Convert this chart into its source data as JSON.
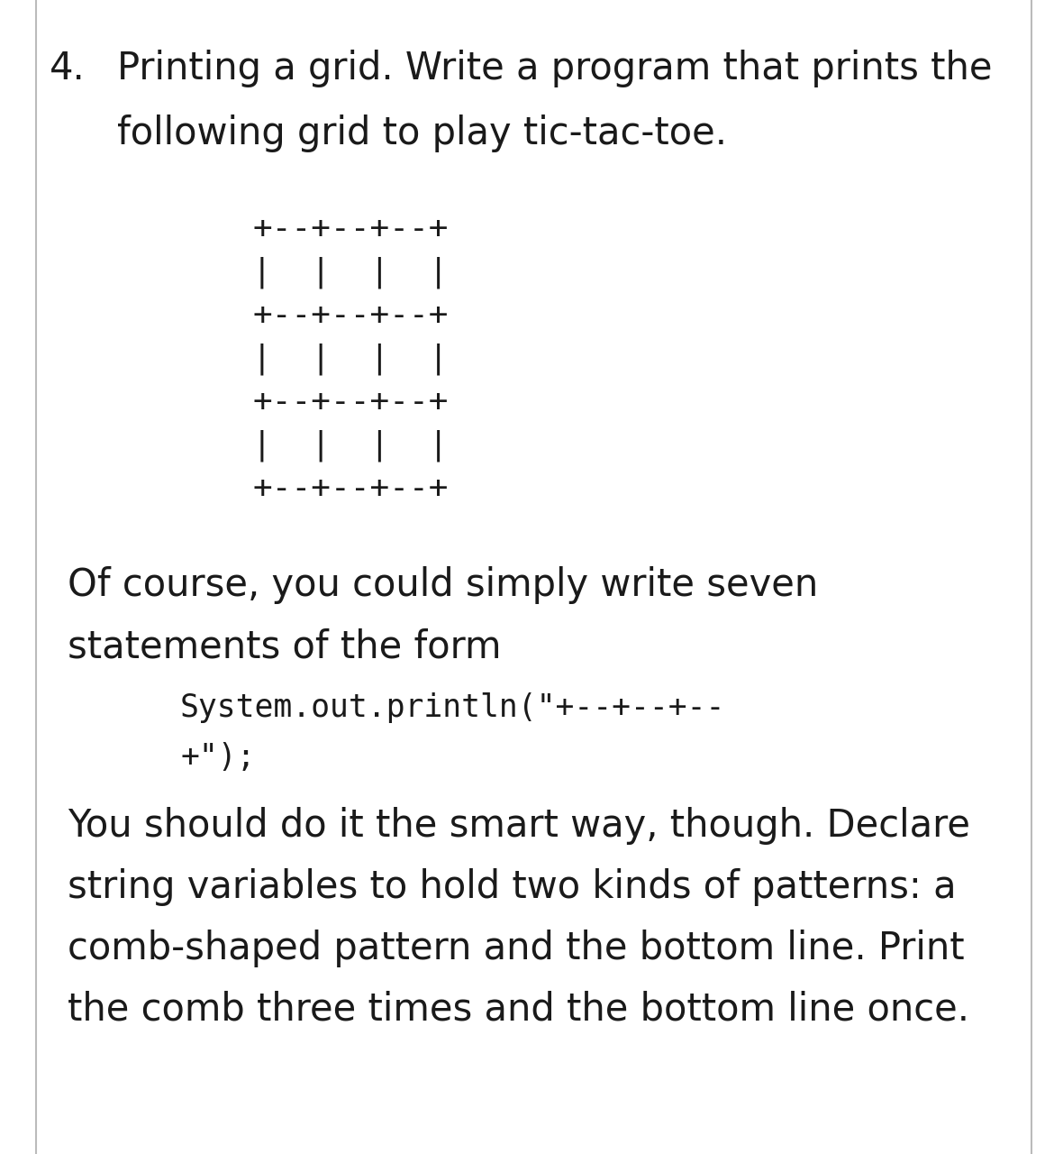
{
  "background_color": "#ffffff",
  "border_color": "#bbbbbb",
  "text_color": "#1a1a1a",
  "number_text": "4.",
  "heading_line1": "Printing a grid. Write a program that prints the",
  "heading_line2": "following grid to play tic-tac-toe.",
  "grid_lines": [
    "+--+--+--+",
    "|  |  |  |",
    "+--+--+--+",
    "|  |  |  |",
    "+--+--+--+",
    "|  |  |  |",
    "+--+--+--+"
  ],
  "para1_line1": "Of course, you could simply write seven",
  "para1_line2": "statements of the form",
  "code_line1": "System.out.println(\"+--+--+--",
  "code_line2": "+\");",
  "para2_line1": "You should do it the smart way, though. Declare",
  "para2_line2": "string variables to hold two kinds of patterns: a",
  "para2_line3": "comb-shaped pattern and the bottom line. Print",
  "para2_line4": "the comb three times and the bottom line once.",
  "heading_fontsize": 30,
  "body_fontsize": 30,
  "code_fontsize": 25,
  "grid_fontsize": 26
}
